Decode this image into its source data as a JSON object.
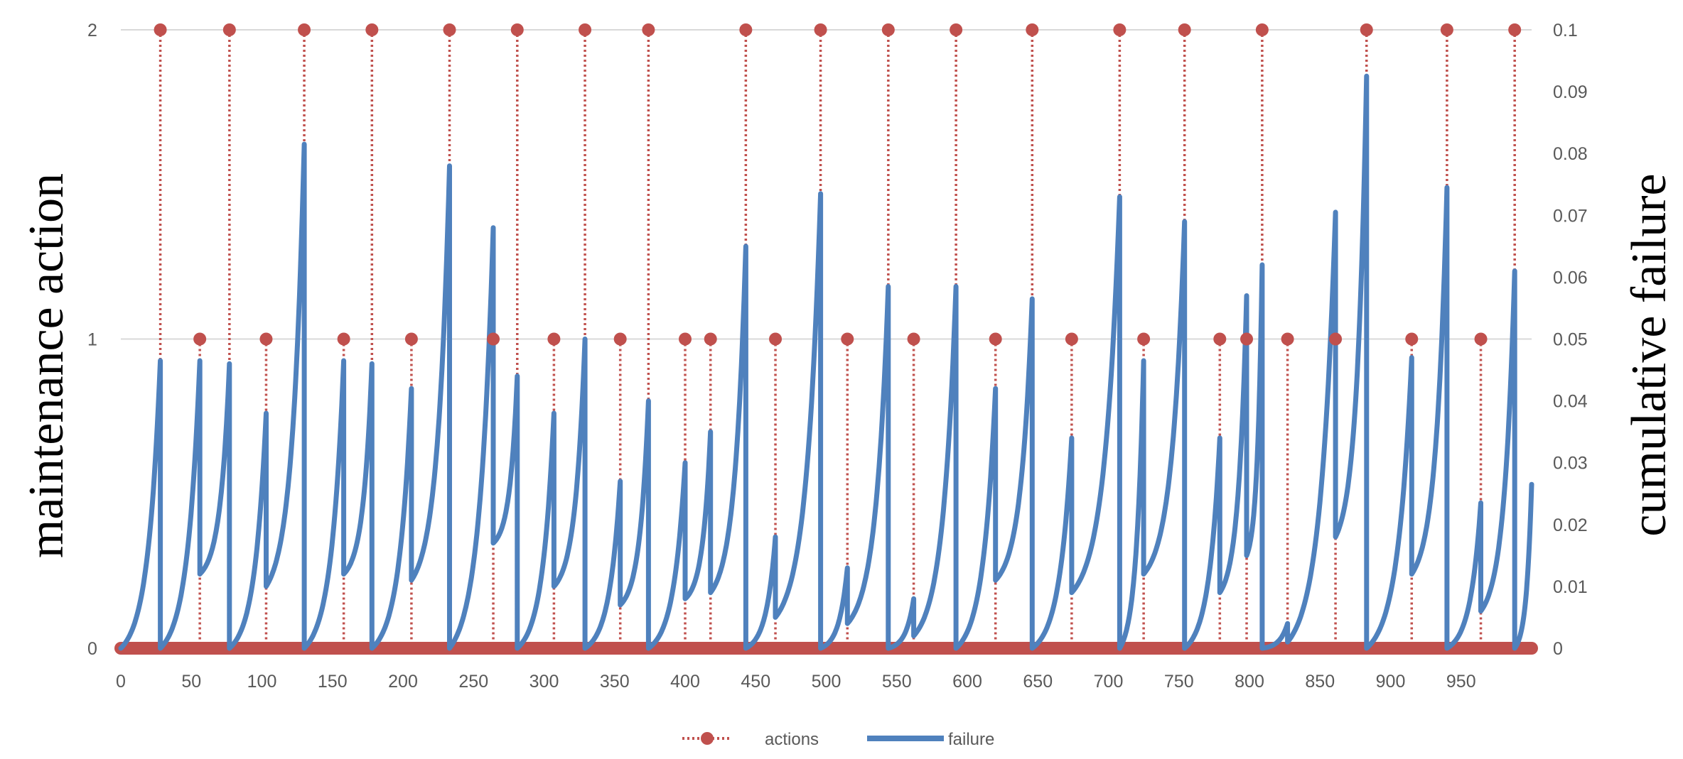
{
  "chart_data": {
    "type": "line",
    "title": "",
    "ylabel_left": "maintenance action",
    "ylabel_right": "cumulative failure",
    "xlim": [
      0,
      1000
    ],
    "ylim_left": [
      0,
      2
    ],
    "ylim_right": [
      0,
      0.1
    ],
    "x_ticks": [
      0,
      50,
      100,
      150,
      200,
      250,
      300,
      350,
      400,
      450,
      500,
      550,
      600,
      650,
      700,
      750,
      800,
      850,
      900,
      950
    ],
    "y_left_ticks": [
      0,
      1,
      2
    ],
    "y_right_ticks": [
      "0",
      "0.01",
      "0.02",
      "0.03",
      "0.04",
      "0.05",
      "0.06",
      "0.07",
      "0.08",
      "0.09",
      "0.1"
    ],
    "grid": "horizontal",
    "legend_position": "bottom",
    "colors": {
      "actions": "#c0504d",
      "failure": "#4f81bd",
      "grid": "#d9d9d9"
    },
    "series": [
      {
        "name": "actions",
        "style": "dotted line with circle markers",
        "axis": "left",
        "points": [
          [
            28,
            2
          ],
          [
            56,
            1
          ],
          [
            77,
            2
          ],
          [
            103,
            1
          ],
          [
            130,
            2
          ],
          [
            158,
            1
          ],
          [
            178,
            2
          ],
          [
            206,
            1
          ],
          [
            233,
            2
          ],
          [
            264,
            1
          ],
          [
            281,
            2
          ],
          [
            307,
            1
          ],
          [
            329,
            2
          ],
          [
            354,
            1
          ],
          [
            374,
            2
          ],
          [
            400,
            1
          ],
          [
            418,
            1
          ],
          [
            443,
            2
          ],
          [
            464,
            1
          ],
          [
            496,
            2
          ],
          [
            515,
            1
          ],
          [
            544,
            2
          ],
          [
            562,
            1
          ],
          [
            592,
            2
          ],
          [
            620,
            1
          ],
          [
            646,
            2
          ],
          [
            674,
            1
          ],
          [
            708,
            2
          ],
          [
            725,
            1
          ],
          [
            754,
            2
          ],
          [
            779,
            1
          ],
          [
            798,
            1
          ],
          [
            809,
            2
          ],
          [
            827,
            1
          ],
          [
            861,
            1
          ],
          [
            883,
            2
          ],
          [
            915,
            1
          ],
          [
            940,
            2
          ],
          [
            964,
            1
          ],
          [
            988,
            2
          ]
        ]
      },
      {
        "name": "failure",
        "style": "solid line",
        "axis": "right",
        "resets": [
          [
            28,
            0.0465,
            0
          ],
          [
            56,
            0.0465,
            0.012
          ],
          [
            77,
            0.046,
            0
          ],
          [
            103,
            0.038,
            0.01
          ],
          [
            130,
            0.0815,
            0
          ],
          [
            158,
            0.0465,
            0.012
          ],
          [
            178,
            0.046,
            0
          ],
          [
            206,
            0.042,
            0.011
          ],
          [
            233,
            0.078,
            0
          ],
          [
            264,
            0.068,
            0.017
          ],
          [
            281,
            0.044,
            0
          ],
          [
            307,
            0.038,
            0.01
          ],
          [
            329,
            0.05,
            0
          ],
          [
            354,
            0.027,
            0.007
          ],
          [
            374,
            0.04,
            0
          ],
          [
            400,
            0.03,
            0.008
          ],
          [
            418,
            0.035,
            0.009
          ],
          [
            443,
            0.065,
            0
          ],
          [
            464,
            0.018,
            0.005
          ],
          [
            496,
            0.0735,
            0
          ],
          [
            515,
            0.013,
            0.004
          ],
          [
            544,
            0.0585,
            0
          ],
          [
            562,
            0.008,
            0.002
          ],
          [
            592,
            0.0585,
            0
          ],
          [
            620,
            0.042,
            0.011
          ],
          [
            646,
            0.0565,
            0
          ],
          [
            674,
            0.034,
            0.009
          ],
          [
            708,
            0.073,
            0
          ],
          [
            725,
            0.0465,
            0.012
          ],
          [
            754,
            0.069,
            0
          ],
          [
            779,
            0.034,
            0.009
          ],
          [
            798,
            0.057,
            0.015
          ],
          [
            809,
            0.062,
            0
          ],
          [
            827,
            0.004,
            0.001
          ],
          [
            861,
            0.0705,
            0.018
          ],
          [
            883,
            0.0925,
            0
          ],
          [
            915,
            0.047,
            0.012
          ],
          [
            940,
            0.0745,
            0
          ],
          [
            964,
            0.0235,
            0.006
          ],
          [
            988,
            0.061,
            0
          ]
        ],
        "end": [
          1000,
          0.0265
        ]
      }
    ]
  }
}
